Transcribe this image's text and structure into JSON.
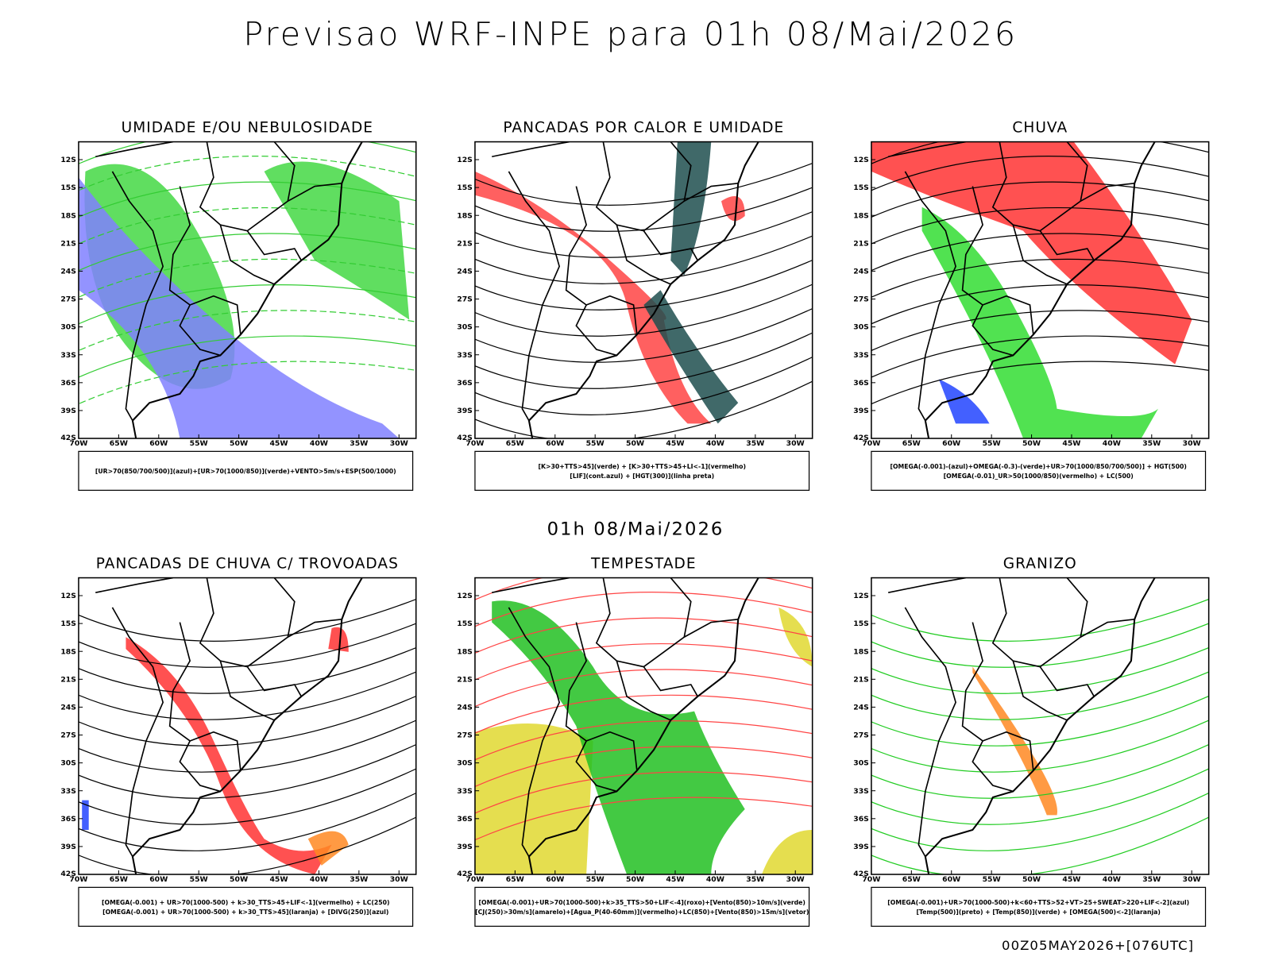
{
  "header": {
    "title": "Previsao WRF-INPE  para 01h 08/Mai/2026",
    "subtitle": "01h 08/Mai/2026",
    "footer": "00Z05MAY2026+[076UTC]"
  },
  "axes": {
    "lat_labels": [
      "12S",
      "15S",
      "18S",
      "21S",
      "24S",
      "27S",
      "30S",
      "33S",
      "36S",
      "39S",
      "42S"
    ],
    "lon_labels": [
      "70W",
      "65W",
      "60W",
      "55W",
      "50W",
      "45W",
      "40W",
      "35W",
      "30W"
    ]
  },
  "panels": [
    {
      "title": "UMIDADE E/OU NEBULOSIDADE",
      "legend": [
        "[UR>70(850/700/500)](azul)+[UR>70(1000/850)](verde)+VENTO>5m/s+ESP(500/1000)"
      ]
    },
    {
      "title": "PANCADAS POR CALOR E UMIDADE",
      "legend": [
        "[K>30+TTS>45](verde) + [K>30+TTS>45+LI<-1](vermelho)",
        "[LIF](cont.azul) + [HGT(300)](linha preta)"
      ]
    },
    {
      "title": "CHUVA",
      "legend": [
        "[OMEGA(-0.001)-(azul)+OMEGA(-0.3)-(verde)+UR>70(1000/850/700/500)] + HGT(500)",
        "[OMEGA(-0.01)_UR>50(1000/850)(vermelho) + LC(500)"
      ]
    },
    {
      "title": "PANCADAS DE CHUVA C/ TROVOADAS",
      "legend": [
        "[OMEGA(-0.001) + UR>70(1000-500) + k>30_TTS>45+LIF<-1](vermelho) + LC(250)",
        "[OMEGA(-0.001) + UR>70(1000-500) + k>30_TTS>45](laranja) + [DIVG(250)](azul)"
      ]
    },
    {
      "title": "TEMPESTADE",
      "legend": [
        "[OMEGA(-0.001)+UR>70(1000-500)+k>35_TTS>50+LIF<-4](roxo)+[Vento(850)>10m/s](verde)",
        "[CJ(250)>30m/s](amarelo)+[Agua_P(40-60mm)](vermelho)+LC(850)+[Vento(850)>15m/s](vetor)"
      ]
    },
    {
      "title": "GRANIZO",
      "legend": [
        "[OMEGA(-0.001)+UR>70(1000-500)+k<60+TTS>52+VT>25+SWEAT>220+LIF<-2](azul)",
        "[Temp(500)](preto) + [Temp(850)](verde) + [OMEGA(500)<-2](laranja)"
      ]
    }
  ]
}
